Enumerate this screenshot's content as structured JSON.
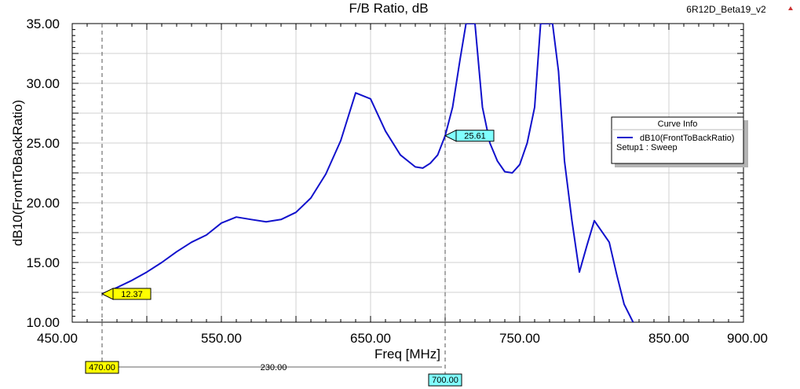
{
  "header": {
    "title": "F/B Ratio, dB",
    "project": "6R12D_Beta19_v2"
  },
  "chart_data": {
    "type": "line",
    "title": "F/B Ratio, dB",
    "xlabel": "Freq [MHz]",
    "ylabel": "dB10(FrontToBackRatio)",
    "xlim": [
      450,
      900
    ],
    "ylim": [
      10,
      35
    ],
    "x_ticks": [
      "450.00",
      "550.00",
      "650.00",
      "750.00",
      "850.00",
      "900.00"
    ],
    "y_ticks": [
      "10.00",
      "15.00",
      "20.00",
      "25.00",
      "30.00",
      "35.00"
    ],
    "grid": true,
    "legend_position": "right",
    "series": [
      {
        "name": "dB10(FrontToBackRatio)",
        "color": "#1111cc",
        "x": [
          470,
          480,
          490,
          500,
          510,
          520,
          530,
          540,
          550,
          560,
          570,
          580,
          590,
          600,
          610,
          620,
          630,
          640,
          650,
          660,
          670,
          680,
          685,
          690,
          695,
          700,
          705,
          710,
          714,
          720,
          725,
          730,
          735,
          740,
          745,
          750,
          755,
          760,
          764,
          768,
          772,
          776,
          780,
          785,
          790,
          795,
          800,
          810,
          815,
          820,
          826
        ],
        "y": [
          12.37,
          12.9,
          13.5,
          14.2,
          15.0,
          15.9,
          16.7,
          17.3,
          18.3,
          18.8,
          18.6,
          18.4,
          18.6,
          19.2,
          20.4,
          22.4,
          25.2,
          29.2,
          28.7,
          26.0,
          24.0,
          23.0,
          22.9,
          23.3,
          24.0,
          25.61,
          28.0,
          32.0,
          35.0,
          35.0,
          28.0,
          25.0,
          23.5,
          22.6,
          22.5,
          23.2,
          25.0,
          28.0,
          35.0,
          35.0,
          35.0,
          31.0,
          23.5,
          18.5,
          14.2,
          16.4,
          18.5,
          16.7,
          14.0,
          11.5,
          10.0
        ]
      }
    ],
    "legend": {
      "title": "Curve Info",
      "entries": [
        {
          "label": "dB10(FrontToBackRatio)",
          "sub": "Setup1 : Sweep",
          "color": "#1111cc"
        }
      ]
    },
    "markers": [
      {
        "x": 470,
        "x_label": "470.00",
        "y": 12.37,
        "y_label": "12.37",
        "color": "#ffff00"
      },
      {
        "x": 700,
        "x_label": "700.00",
        "y": 25.61,
        "y_label": "25.61",
        "color": "#80ffff"
      }
    ],
    "delta_label": "230.00"
  }
}
